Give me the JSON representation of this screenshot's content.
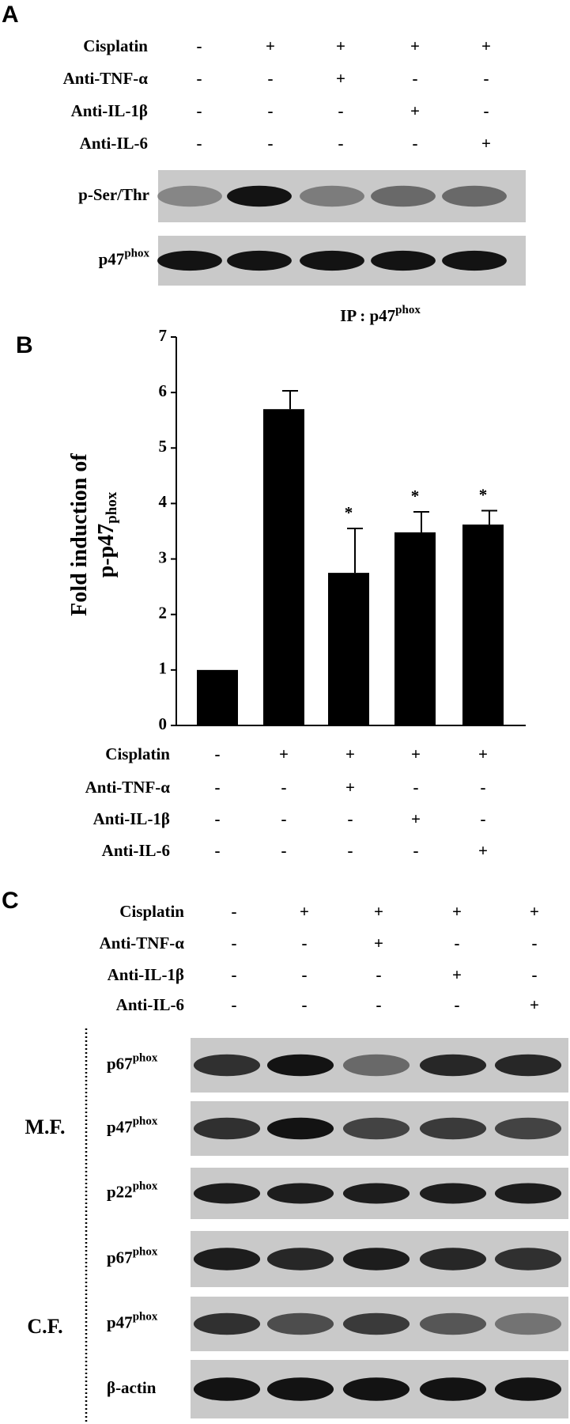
{
  "panel_a": {
    "label": "A",
    "conditions": [
      {
        "label": "Cisplatin",
        "signs": [
          "-",
          "+",
          "+",
          "+",
          "+"
        ]
      },
      {
        "label": "Anti-TNF-α",
        "signs": [
          "-",
          "-",
          "+",
          "-",
          "-"
        ]
      },
      {
        "label": "Anti-IL-1β",
        "signs": [
          "-",
          "-",
          "-",
          "+",
          "-"
        ]
      },
      {
        "label": "Anti-IL-6",
        "signs": [
          "-",
          "-",
          "-",
          "-",
          "+"
        ]
      }
    ],
    "blots": [
      {
        "label": "p-Ser/Thr"
      },
      {
        "label": "p47",
        "sup": "phox"
      }
    ],
    "ip": {
      "label": "IP : p47",
      "sup": "phox"
    }
  },
  "chart_data": {
    "type": "bar",
    "panel": "B",
    "ylabel": {
      "line1": "Fold induction of",
      "line2": "p-p47",
      "sup": "phox"
    },
    "values": [
      1.0,
      5.7,
      2.75,
      3.48,
      3.62
    ],
    "errors": [
      null,
      0.33,
      0.8,
      0.37,
      0.25
    ],
    "annotations": [
      null,
      null,
      "*",
      "*",
      "*"
    ],
    "color": "#000000",
    "ylim": [
      0,
      7
    ],
    "yticks": [
      0,
      1,
      2,
      3,
      4,
      5,
      6,
      7
    ],
    "conditions": [
      {
        "label": "Cisplatin",
        "signs": [
          "-",
          "+",
          "+",
          "+",
          "+"
        ]
      },
      {
        "label": "Anti-TNF-α",
        "signs": [
          "-",
          "-",
          "+",
          "-",
          "-"
        ]
      },
      {
        "label": "Anti-IL-1β",
        "signs": [
          "-",
          "-",
          "-",
          "+",
          "-"
        ]
      },
      {
        "label": "Anti-IL-6",
        "signs": [
          "-",
          "-",
          "-",
          "-",
          "+"
        ]
      }
    ]
  },
  "panel_c": {
    "label": "C",
    "conditions": [
      {
        "label": "Cisplatin",
        "signs": [
          "-",
          "+",
          "+",
          "+",
          "+"
        ]
      },
      {
        "label": "Anti-TNF-α",
        "signs": [
          "-",
          "-",
          "+",
          "-",
          "-"
        ]
      },
      {
        "label": "Anti-IL-1β",
        "signs": [
          "-",
          "-",
          "-",
          "+",
          "-"
        ]
      },
      {
        "label": "Anti-IL-6",
        "signs": [
          "-",
          "-",
          "-",
          "-",
          "+"
        ]
      }
    ],
    "groups": [
      {
        "label": "M.F.",
        "blots": [
          {
            "label": "p67",
            "sup": "phox"
          },
          {
            "label": "p47",
            "sup": "phox"
          },
          {
            "label": "p22",
            "sup": "phox"
          }
        ]
      },
      {
        "label": "C.F.",
        "blots": [
          {
            "label": "p67",
            "sup": "phox"
          },
          {
            "label": "p47",
            "sup": "phox"
          },
          {
            "label": "β-actin"
          }
        ]
      }
    ]
  }
}
